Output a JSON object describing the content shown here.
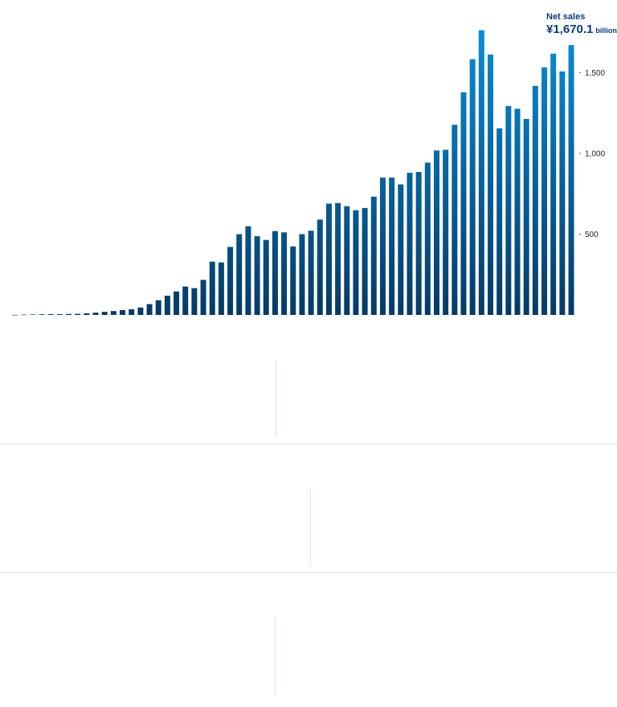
{
  "chart_data": {
    "type": "bar",
    "title": "",
    "xlabel": "",
    "ylabel": "",
    "ylim": [
      0,
      1800
    ],
    "yticks": [
      500,
      1000,
      1500
    ],
    "ytick_labels": [
      "500",
      "1,000",
      "1,500"
    ],
    "annotation": {
      "label": "Net sales",
      "value": "¥1,670.1",
      "unit": "billion"
    },
    "colors": {
      "bar_top": "#0a8fd9",
      "bar_bottom": "#063a66"
    },
    "values": [
      1,
      2,
      3,
      4,
      5,
      5,
      6,
      7,
      10,
      14,
      19,
      24,
      30,
      35,
      46,
      67,
      91,
      119,
      145,
      176,
      166,
      217,
      330,
      325,
      421,
      500,
      549,
      487,
      464,
      519,
      511,
      424,
      500,
      521,
      590,
      689,
      693,
      673,
      648,
      662,
      732,
      850,
      850,
      808,
      880,
      885,
      943,
      1018,
      1022,
      1177,
      1378,
      1583,
      1762,
      1612,
      1155,
      1293,
      1276,
      1213,
      1418,
      1532,
      1617,
      1507,
      1670.1
    ]
  },
  "separators": [
    {
      "vertical": true
    },
    {
      "vertical": true
    },
    {
      "vertical": true
    }
  ]
}
